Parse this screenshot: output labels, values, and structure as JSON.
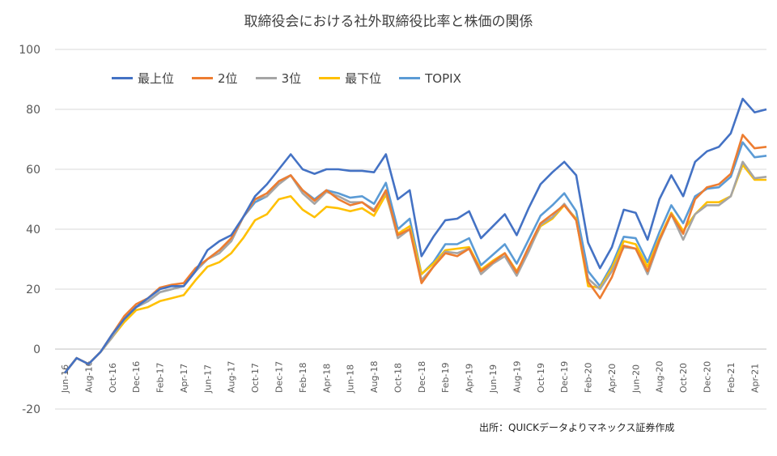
{
  "chart_data": {
    "type": "line",
    "title": "取締役会における社外取締役比率と株価の関係",
    "source_note": "出所：QUICKデータよりマネックス証券作成",
    "ylim": [
      -20,
      100
    ],
    "yticks": [
      "100",
      "80",
      "60",
      "40",
      "20",
      "0",
      "-20"
    ],
    "ytick_values": [
      100,
      80,
      60,
      40,
      20,
      0,
      -20
    ],
    "x": [
      "Jun-16",
      "Jul-16",
      "Aug-16",
      "Sep-16",
      "Oct-16",
      "Nov-16",
      "Dec-16",
      "Jan-17",
      "Feb-17",
      "Mar-17",
      "Apr-17",
      "May-17",
      "Jun-17",
      "Jul-17",
      "Aug-17",
      "Sep-17",
      "Oct-17",
      "Nov-17",
      "Dec-17",
      "Jan-18",
      "Feb-18",
      "Mar-18",
      "Apr-18",
      "May-18",
      "Jun-18",
      "Jul-18",
      "Aug-18",
      "Sep-18",
      "Oct-18",
      "Nov-18",
      "Dec-18",
      "Jan-19",
      "Feb-19",
      "Mar-19",
      "Apr-19",
      "May-19",
      "Jun-19",
      "Jul-19",
      "Aug-19",
      "Sep-19",
      "Oct-19",
      "Nov-19",
      "Dec-19",
      "Jan-20",
      "Feb-20",
      "Mar-20",
      "Apr-20",
      "May-20",
      "Jun-20",
      "Jul-20",
      "Aug-20",
      "Sep-20",
      "Oct-20",
      "Nov-20",
      "Dec-20",
      "Jan-21",
      "Feb-21",
      "Mar-21",
      "Apr-21",
      "May-21"
    ],
    "xtick_labels": [
      "Jun-16",
      "Aug-16",
      "Oct-16",
      "Dec-16",
      "Feb-17",
      "Apr-17",
      "Jun-17",
      "Aug-17",
      "Oct-17",
      "Dec-17",
      "Feb-18",
      "Apr-18",
      "Jun-18",
      "Aug-18",
      "Oct-18",
      "Dec-18",
      "Feb-19",
      "Apr-19",
      "Jun-19",
      "Aug-19",
      "Oct-19",
      "Dec-19",
      "Feb-20",
      "Apr-20",
      "Jun-20",
      "Aug-20",
      "Oct-20",
      "Dec-20",
      "Feb-21",
      "Apr-21"
    ],
    "grid": true,
    "legend_position": "top-left",
    "series": [
      {
        "name": "最上位",
        "color": "#4472C4",
        "values": [
          -8,
          -3,
          -5,
          -1,
          5,
          10,
          14,
          17,
          20,
          21,
          21,
          26,
          33,
          36,
          38,
          44,
          51,
          55,
          60,
          65,
          60,
          58.5,
          60,
          60,
          59.5,
          59.5,
          59,
          65,
          50,
          53,
          31,
          37.5,
          43,
          43.5,
          46,
          37,
          41,
          45,
          38,
          47,
          55,
          59,
          62.5,
          58,
          35.5,
          27,
          34,
          46.5,
          45.5,
          36.5,
          50,
          58,
          51,
          62.5,
          66,
          67.5,
          72,
          83.5,
          79,
          80
        ]
      },
      {
        "name": "2位",
        "color": "#ED7D31",
        "values": [
          -8,
          -3,
          -5,
          -1,
          5,
          11,
          15,
          17,
          20.5,
          21.5,
          22,
          27,
          30,
          33,
          37,
          44,
          50,
          52,
          56,
          58,
          53,
          49.5,
          53,
          50,
          48,
          49,
          46,
          53,
          38,
          40,
          22,
          27.5,
          32,
          31,
          33.5,
          26,
          29,
          32,
          25.5,
          34,
          42,
          45,
          48,
          43,
          22.5,
          17,
          24,
          34.5,
          33.5,
          26,
          36.5,
          45,
          38.5,
          50,
          54,
          55,
          58.5,
          71.5,
          67,
          67.5
        ]
      },
      {
        "name": "3位",
        "color": "#A5A5A5",
        "values": [
          -8,
          -3,
          -5,
          -1,
          4,
          10,
          14,
          16,
          19,
          20,
          21,
          26,
          30,
          32,
          36,
          44,
          50,
          51,
          55,
          58,
          52,
          48.5,
          52.5,
          51,
          49,
          49,
          46.5,
          52.5,
          37,
          40,
          23,
          27.5,
          32.5,
          32,
          33.5,
          25,
          28.5,
          31,
          24.5,
          32.5,
          41.5,
          44,
          48.5,
          43,
          23.5,
          20,
          26,
          34,
          33.5,
          25,
          36,
          45,
          36.5,
          45,
          48,
          48,
          51,
          62.5,
          57,
          57.5
        ]
      },
      {
        "name": "最下位",
        "color": "#FFC000",
        "values": [
          -8,
          -3,
          -5,
          -1,
          4,
          9,
          13,
          14,
          16,
          17,
          18,
          23,
          27.5,
          29,
          32,
          37,
          43,
          45,
          50,
          51,
          46.5,
          44,
          47.5,
          47,
          46,
          47,
          44.5,
          51.5,
          38.5,
          41,
          25,
          28.5,
          33,
          33.5,
          34,
          26.5,
          29.5,
          32,
          26,
          33,
          41,
          43.5,
          48,
          43.5,
          21,
          20.5,
          27,
          36,
          35,
          27.5,
          37,
          45.5,
          39.5,
          45,
          49,
          49,
          51,
          61.5,
          56.5,
          56.5
        ]
      },
      {
        "name": "TOPIX",
        "color": "#5B9BD5",
        "values": [
          -8,
          -3,
          -5,
          -1,
          4,
          10,
          14,
          16,
          19,
          20,
          21,
          26,
          30,
          33,
          36,
          44,
          49,
          51,
          56,
          58,
          53,
          50,
          53,
          52,
          50.5,
          51,
          48.5,
          55.5,
          40,
          43.5,
          25,
          29,
          35,
          35,
          37,
          28,
          31.5,
          35,
          28.5,
          36.5,
          44.5,
          48,
          52,
          46,
          26,
          21,
          28,
          37.5,
          37,
          29,
          39,
          48,
          42,
          51,
          53.5,
          54,
          57.5,
          69,
          64,
          64.5
        ]
      }
    ]
  }
}
